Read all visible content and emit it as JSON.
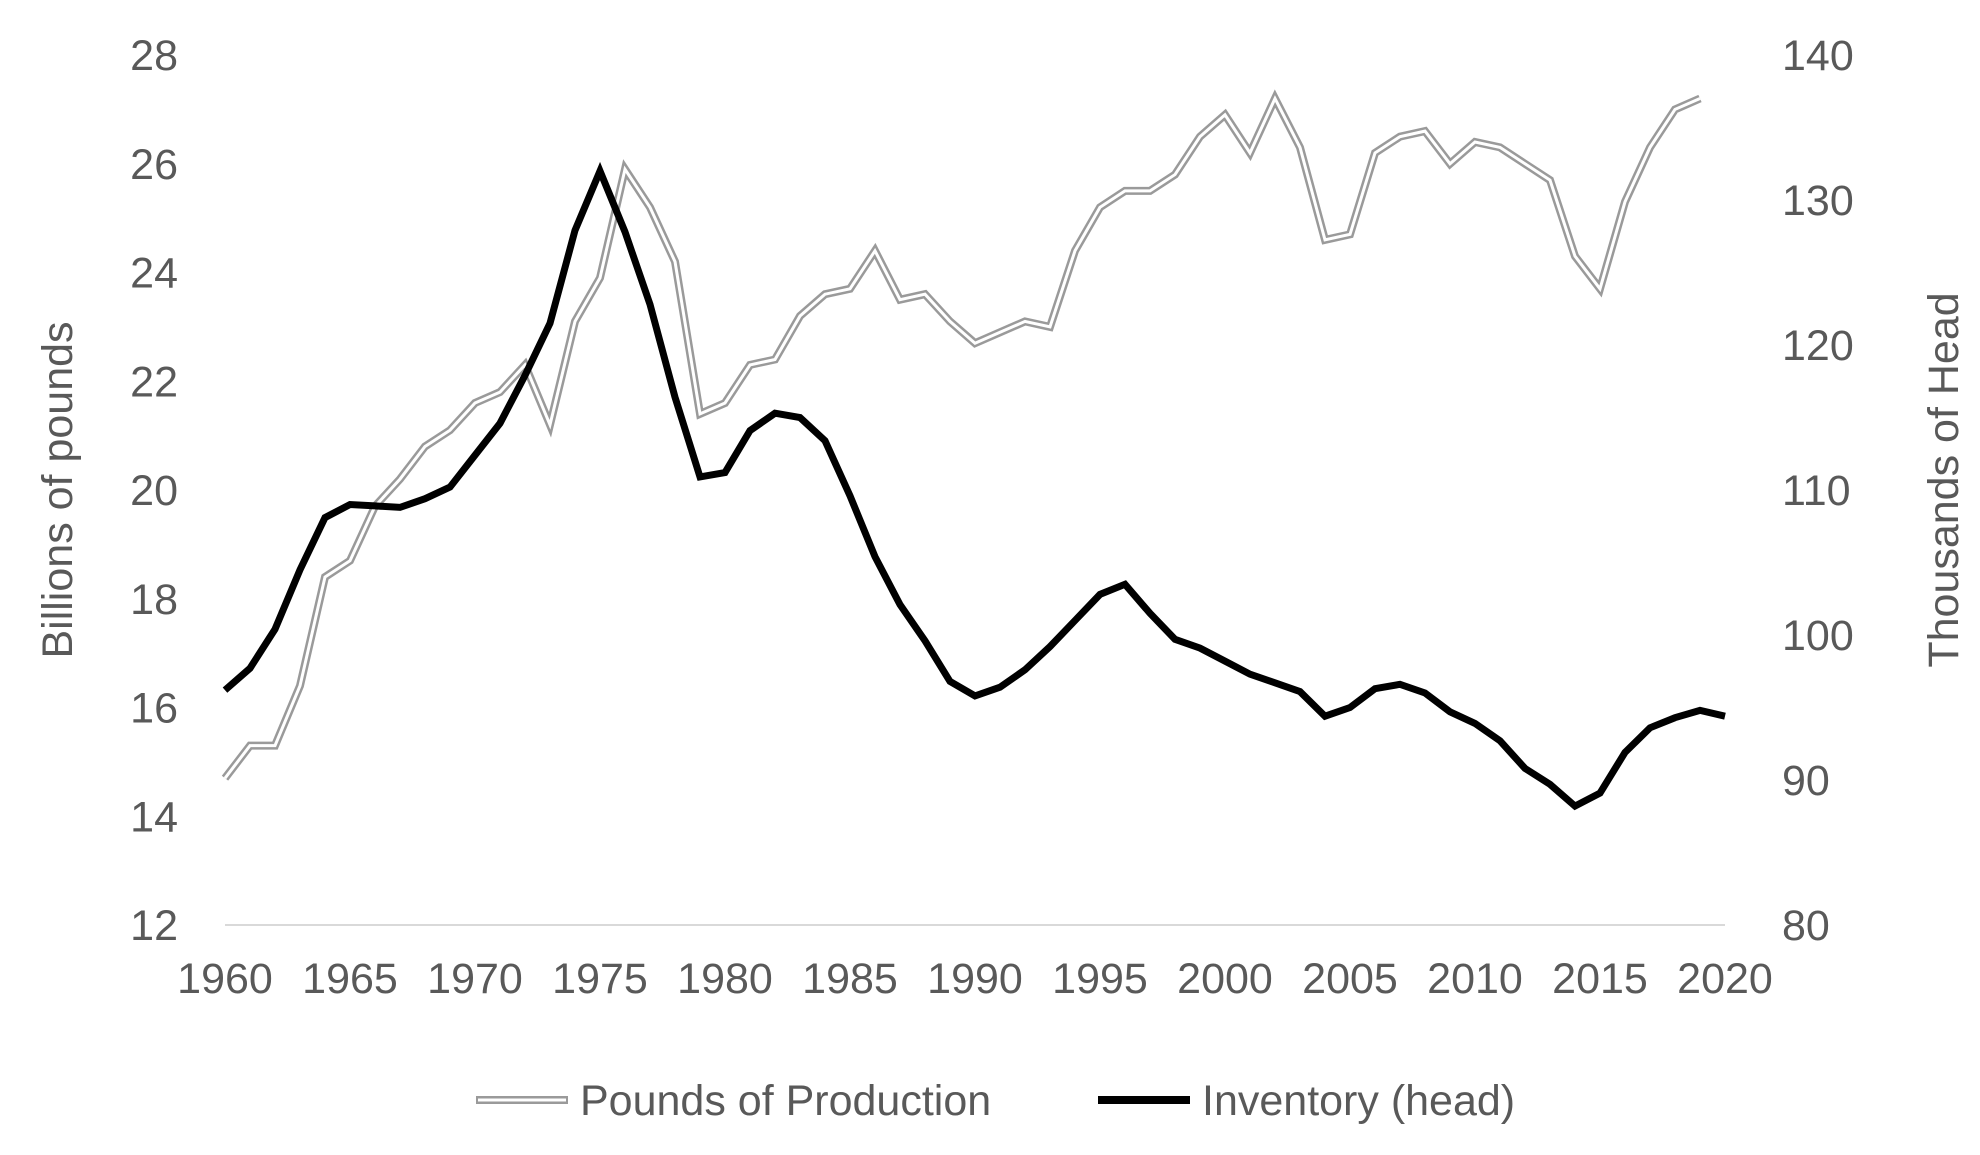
{
  "chart_data": {
    "type": "line",
    "title": "",
    "xlabel": "",
    "ylabel_left": "Billions of pounds",
    "ylabel_right": "Thousands of Head",
    "x_ticks": [
      1960,
      1965,
      1970,
      1975,
      1980,
      1985,
      1990,
      1995,
      2000,
      2005,
      2010,
      2015,
      2020
    ],
    "y_left_ticks": [
      12,
      14,
      16,
      18,
      20,
      22,
      24,
      26,
      28
    ],
    "y_right_ticks": [
      80,
      90,
      100,
      110,
      120,
      130,
      140
    ],
    "xlim": [
      1960,
      2020
    ],
    "ylim_left": [
      12,
      28
    ],
    "ylim_right": [
      80,
      140
    ],
    "grid": false,
    "legend_position": "bottom",
    "series": [
      {
        "name": "Pounds of Production",
        "axis": "left",
        "style": "double-line",
        "color": "#9a9a9a",
        "x": [
          1960,
          1961,
          1962,
          1963,
          1964,
          1965,
          1966,
          1967,
          1968,
          1969,
          1970,
          1971,
          1972,
          1973,
          1974,
          1975,
          1976,
          1977,
          1978,
          1979,
          1980,
          1981,
          1982,
          1983,
          1984,
          1985,
          1986,
          1987,
          1988,
          1989,
          1990,
          1991,
          1992,
          1993,
          1994,
          1995,
          1996,
          1997,
          1998,
          1999,
          2000,
          2001,
          2002,
          2003,
          2004,
          2005,
          2006,
          2007,
          2008,
          2009,
          2010,
          2011,
          2012,
          2013,
          2014,
          2015,
          2016,
          2017,
          2018,
          2019
        ],
        "values": [
          14.7,
          15.3,
          15.3,
          16.4,
          18.4,
          18.7,
          19.7,
          20.2,
          20.8,
          21.1,
          21.6,
          21.8,
          22.3,
          21.2,
          23.1,
          23.9,
          25.9,
          25.2,
          24.2,
          21.4,
          21.6,
          22.3,
          22.4,
          23.2,
          23.6,
          23.7,
          24.4,
          23.5,
          23.6,
          23.1,
          22.7,
          22.9,
          23.1,
          23.0,
          24.4,
          25.2,
          25.5,
          25.5,
          25.8,
          26.5,
          26.9,
          26.2,
          27.2,
          26.3,
          24.6,
          24.7,
          26.2,
          26.5,
          26.6,
          26.0,
          26.4,
          26.3,
          26.0,
          25.7,
          24.3,
          23.7,
          25.3,
          26.3,
          27.0,
          27.2
        ]
      },
      {
        "name": "Inventory (head)",
        "axis": "right",
        "style": "solid",
        "color": "#000000",
        "x": [
          1960,
          1961,
          1962,
          1963,
          1964,
          1965,
          1966,
          1967,
          1968,
          1969,
          1970,
          1971,
          1972,
          1973,
          1974,
          1975,
          1976,
          1977,
          1978,
          1979,
          1980,
          1981,
          1982,
          1983,
          1984,
          1985,
          1986,
          1987,
          1988,
          1989,
          1990,
          1991,
          1992,
          1993,
          1994,
          1995,
          1996,
          1997,
          1998,
          1999,
          2000,
          2001,
          2002,
          2003,
          2004,
          2005,
          2006,
          2007,
          2008,
          2009,
          2010,
          2011,
          2012,
          2013,
          2014,
          2015,
          2016,
          2017,
          2018,
          2019,
          2020
        ],
        "values": [
          96.2,
          97.7,
          100.4,
          104.5,
          108.1,
          109.0,
          108.9,
          108.8,
          109.4,
          110.2,
          112.4,
          114.6,
          117.9,
          121.5,
          127.9,
          132.0,
          127.8,
          122.8,
          116.4,
          110.9,
          111.2,
          114.1,
          115.3,
          115.0,
          113.4,
          109.6,
          105.4,
          102.1,
          99.6,
          96.8,
          95.8,
          96.4,
          97.6,
          99.2,
          101.0,
          102.8,
          103.5,
          101.5,
          99.7,
          99.1,
          98.2,
          97.3,
          96.7,
          96.1,
          94.4,
          95.0,
          96.3,
          96.6,
          96.0,
          94.7,
          93.9,
          92.7,
          90.8,
          89.7,
          88.2,
          89.1,
          91.9,
          93.6,
          94.3,
          94.8,
          94.4
        ]
      }
    ]
  }
}
